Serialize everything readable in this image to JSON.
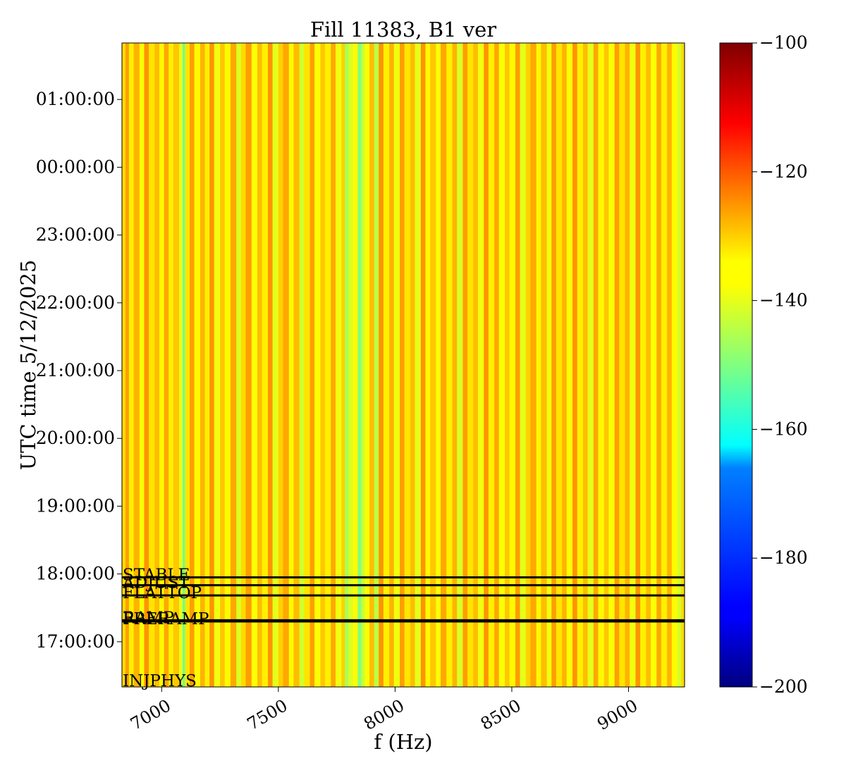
{
  "chart_data": {
    "type": "heatmap",
    "title": "Fill 11383, B1 ver",
    "xlabel": "f (Hz)",
    "ylabel": "UTC time 5/12/2025",
    "xlim": [
      6830,
      9240
    ],
    "x_ticks": [
      {
        "value": 7000,
        "label": "7000"
      },
      {
        "value": 7500,
        "label": "7500"
      },
      {
        "value": 8000,
        "label": "8000"
      },
      {
        "value": 8500,
        "label": "8500"
      },
      {
        "value": 9000,
        "label": "9000"
      }
    ],
    "ylim": [
      "16:20:00",
      "01:50:00"
    ],
    "y_ticks": [
      "17:00:00",
      "18:00:00",
      "19:00:00",
      "20:00:00",
      "21:00:00",
      "22:00:00",
      "23:00:00",
      "00:00:00",
      "01:00:00"
    ],
    "colorbar": {
      "colormap": "jet",
      "range": [
        -200,
        -100
      ],
      "ticks": [
        {
          "value": -100,
          "label": "−100"
        },
        {
          "value": -120,
          "label": "−120"
        },
        {
          "value": -140,
          "label": "−140"
        },
        {
          "value": -160,
          "label": "−160"
        },
        {
          "value": -180,
          "label": "−180"
        },
        {
          "value": -200,
          "label": "−200"
        }
      ]
    },
    "bands": [
      {
        "x": 6830,
        "value": -134
      },
      {
        "x": 6845,
        "value": -128
      },
      {
        "x": 6860,
        "value": -136
      },
      {
        "x": 6880,
        "value": -130
      },
      {
        "x": 6905,
        "value": -138
      },
      {
        "x": 6925,
        "value": -127
      },
      {
        "x": 6945,
        "value": -135
      },
      {
        "x": 6970,
        "value": -131
      },
      {
        "x": 6990,
        "value": -137
      },
      {
        "x": 7010,
        "value": -129
      },
      {
        "x": 7030,
        "value": -136
      },
      {
        "x": 7050,
        "value": -132
      },
      {
        "x": 7075,
        "value": -140
      },
      {
        "x": 7090,
        "value": -152
      },
      {
        "x": 7100,
        "value": -135
      },
      {
        "x": 7120,
        "value": -128
      },
      {
        "x": 7140,
        "value": -137
      },
      {
        "x": 7165,
        "value": -130
      },
      {
        "x": 7185,
        "value": -136
      },
      {
        "x": 7205,
        "value": -127
      },
      {
        "x": 7225,
        "value": -139
      },
      {
        "x": 7250,
        "value": -132
      },
      {
        "x": 7270,
        "value": -137
      },
      {
        "x": 7295,
        "value": -129
      },
      {
        "x": 7320,
        "value": -141
      },
      {
        "x": 7340,
        "value": -134
      },
      {
        "x": 7360,
        "value": -128
      },
      {
        "x": 7385,
        "value": -138
      },
      {
        "x": 7410,
        "value": -131
      },
      {
        "x": 7430,
        "value": -136
      },
      {
        "x": 7455,
        "value": -127
      },
      {
        "x": 7475,
        "value": -140
      },
      {
        "x": 7500,
        "value": -133
      },
      {
        "x": 7520,
        "value": -129
      },
      {
        "x": 7545,
        "value": -137
      },
      {
        "x": 7565,
        "value": -131
      },
      {
        "x": 7590,
        "value": -142
      },
      {
        "x": 7610,
        "value": -135
      },
      {
        "x": 7635,
        "value": -128
      },
      {
        "x": 7655,
        "value": -138
      },
      {
        "x": 7680,
        "value": -132
      },
      {
        "x": 7700,
        "value": -136
      },
      {
        "x": 7725,
        "value": -129
      },
      {
        "x": 7745,
        "value": -139
      },
      {
        "x": 7770,
        "value": -133
      },
      {
        "x": 7785,
        "value": -146
      },
      {
        "x": 7800,
        "value": -141
      },
      {
        "x": 7820,
        "value": -137
      },
      {
        "x": 7840,
        "value": -150
      },
      {
        "x": 7855,
        "value": -143
      },
      {
        "x": 7870,
        "value": -138
      },
      {
        "x": 7890,
        "value": -131
      },
      {
        "x": 7910,
        "value": -144
      },
      {
        "x": 7930,
        "value": -127
      },
      {
        "x": 7950,
        "value": -136
      },
      {
        "x": 7975,
        "value": -130
      },
      {
        "x": 7995,
        "value": -139
      },
      {
        "x": 8020,
        "value": -128
      },
      {
        "x": 8040,
        "value": -135
      },
      {
        "x": 8065,
        "value": -131
      },
      {
        "x": 8085,
        "value": -140
      },
      {
        "x": 8110,
        "value": -127
      },
      {
        "x": 8130,
        "value": -137
      },
      {
        "x": 8150,
        "value": -132
      },
      {
        "x": 8175,
        "value": -138
      },
      {
        "x": 8195,
        "value": -129
      },
      {
        "x": 8220,
        "value": -136
      },
      {
        "x": 8245,
        "value": -130
      },
      {
        "x": 8265,
        "value": -141
      },
      {
        "x": 8290,
        "value": -128
      },
      {
        "x": 8310,
        "value": -135
      },
      {
        "x": 8335,
        "value": -131
      },
      {
        "x": 8355,
        "value": -139
      },
      {
        "x": 8380,
        "value": -127
      },
      {
        "x": 8400,
        "value": -136
      },
      {
        "x": 8425,
        "value": -129
      },
      {
        "x": 8445,
        "value": -138
      },
      {
        "x": 8470,
        "value": -132
      },
      {
        "x": 8490,
        "value": -137
      },
      {
        "x": 8515,
        "value": -128
      },
      {
        "x": 8535,
        "value": -140
      },
      {
        "x": 8560,
        "value": -133
      },
      {
        "x": 8580,
        "value": -129
      },
      {
        "x": 8605,
        "value": -137
      },
      {
        "x": 8625,
        "value": -131
      },
      {
        "x": 8650,
        "value": -139
      },
      {
        "x": 8670,
        "value": -128
      },
      {
        "x": 8690,
        "value": -135
      },
      {
        "x": 8715,
        "value": -130
      },
      {
        "x": 8735,
        "value": -138
      },
      {
        "x": 8760,
        "value": -127
      },
      {
        "x": 8780,
        "value": -136
      },
      {
        "x": 8805,
        "value": -131
      },
      {
        "x": 8825,
        "value": -140
      },
      {
        "x": 8850,
        "value": -129
      },
      {
        "x": 8870,
        "value": -137
      },
      {
        "x": 8895,
        "value": -132
      },
      {
        "x": 8915,
        "value": -138
      },
      {
        "x": 8940,
        "value": -128
      },
      {
        "x": 8960,
        "value": -135
      },
      {
        "x": 8985,
        "value": -130
      },
      {
        "x": 9005,
        "value": -139
      },
      {
        "x": 9030,
        "value": -127
      },
      {
        "x": 9050,
        "value": -136
      },
      {
        "x": 9075,
        "value": -131
      },
      {
        "x": 9095,
        "value": -138
      },
      {
        "x": 9120,
        "value": -129
      },
      {
        "x": 9140,
        "value": -136
      },
      {
        "x": 9165,
        "value": -130
      },
      {
        "x": 9185,
        "value": -137
      },
      {
        "x": 9210,
        "value": -142
      },
      {
        "x": 9225,
        "value": -134
      }
    ],
    "annotations": [
      {
        "label": "STABLE",
        "time": "17:57:00",
        "line": true
      },
      {
        "label": "ADJUST",
        "time": "17:50:00",
        "line": true
      },
      {
        "label": "FLATTOP",
        "time": "17:41:00",
        "line": true
      },
      {
        "label": "RAMP",
        "time": "17:19:00",
        "line": true
      },
      {
        "label": "PRERAMP",
        "time": "17:18:00",
        "line": true
      },
      {
        "label": "INJPHYS",
        "time": "16:20:00",
        "line": false
      }
    ]
  }
}
